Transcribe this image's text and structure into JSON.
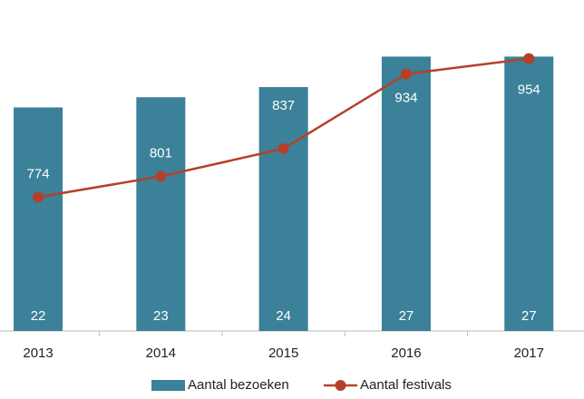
{
  "chart_data": {
    "type": "bar-line",
    "categories": [
      "2013",
      "2014",
      "2015",
      "2016",
      "2017"
    ],
    "series": [
      {
        "name": "Aantal bezoeken",
        "type": "bar",
        "color": "#3a8199",
        "values": [
          22,
          23,
          24,
          27,
          27
        ]
      },
      {
        "name": "Aantal festivals",
        "type": "line",
        "axis": "y2",
        "color": "#b5402a",
        "values": [
          774,
          801,
          837,
          934,
          954
        ]
      }
    ],
    "ylim": [
      0,
      29
    ],
    "y2lim": [
      600,
      983
    ]
  }
}
